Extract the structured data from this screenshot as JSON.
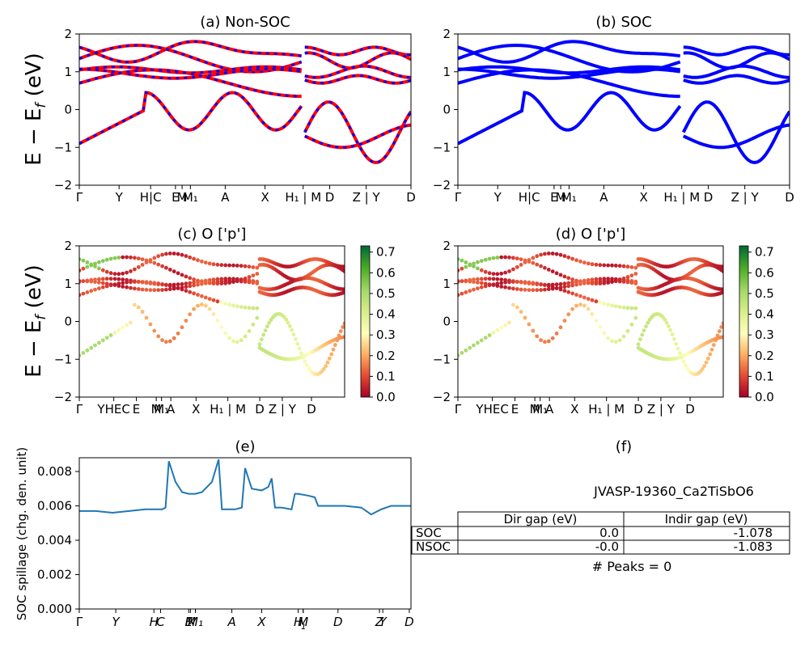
{
  "chart_data": [
    {
      "id": "a",
      "type": "line",
      "title": "(a) Non-SOC",
      "ylabel": "E − E",
      "ylabel_sub": "f",
      "ylabel_unit": " (eV)",
      "ylim": [
        -2,
        2
      ],
      "yticks": [
        "2",
        "1",
        "0",
        "−1",
        "−2"
      ],
      "xtick_labels": [
        "Γ",
        "Y",
        "H|C",
        "E",
        "M",
        "M₁",
        "A",
        "X",
        "H₁ | M",
        "D",
        "Z | Y",
        "D"
      ],
      "colors": {
        "nonsoc": "#ff0000",
        "soc": "#0000ff"
      },
      "note": "red Non-SOC bands overlaid with blue dashed SOC bands"
    },
    {
      "id": "b",
      "type": "line",
      "title": "(b) SOC",
      "ylim": [
        -2,
        2
      ],
      "yticks": [
        "2",
        "1",
        "0",
        "−1",
        "−2"
      ],
      "xtick_labels": [
        "Γ",
        "Y",
        "H|C",
        "E",
        "M",
        "M₁",
        "A",
        "X",
        "H₁ | M",
        "D",
        "Z | Y",
        "D"
      ],
      "colors": {
        "soc": "#0000ff"
      }
    },
    {
      "id": "c",
      "type": "scatter",
      "title": "(c)  O ['p']",
      "ylabel": "E − E",
      "ylabel_sub": "f",
      "ylabel_unit": " (eV)",
      "ylim": [
        -2,
        2
      ],
      "yticks": [
        "2",
        "1",
        "0",
        "−1",
        "−2"
      ],
      "xtick_labels": [
        "Γ",
        "YHEC",
        "E",
        "M",
        "M₁",
        "A",
        "X",
        "H₁ | M",
        "D",
        "Z | Y",
        "D"
      ],
      "colorbar": {
        "cmap": "RdYlGn",
        "range": [
          0.0,
          0.73
        ],
        "ticks": [
          "0.0",
          "0.1",
          "0.2",
          "0.3",
          "0.4",
          "0.5",
          "0.6",
          "0.7"
        ]
      }
    },
    {
      "id": "d",
      "type": "scatter",
      "title": "(d) O ['p']",
      "ylim": [
        -2,
        2
      ],
      "yticks": [
        "2",
        "1",
        "0",
        "−1",
        "−2"
      ],
      "xtick_labels": [
        "Γ",
        "YHEC",
        "E",
        "M",
        "M₁",
        "A",
        "X",
        "H₁ | M",
        "D",
        "Z | Y",
        "D"
      ],
      "colorbar": {
        "cmap": "RdYlGn",
        "range": [
          0.0,
          0.73
        ],
        "ticks": [
          "0.0",
          "0.1",
          "0.2",
          "0.3",
          "0.4",
          "0.5",
          "0.6",
          "0.7"
        ]
      }
    },
    {
      "id": "e",
      "type": "line",
      "title": "(e)",
      "ylabel": "SOC spillage (chg. den. unit)",
      "ylim": [
        0,
        0.0088
      ],
      "yticks": [
        "0.000",
        "0.002",
        "0.004",
        "0.006",
        "0.008"
      ],
      "xtick_labels": [
        "Γ",
        "Y",
        "H",
        "C",
        "E",
        "M",
        "M₁",
        "A",
        "X",
        "H",
        "M",
        "₁",
        "D",
        "Z",
        "Y",
        "D"
      ],
      "x": [
        0,
        0.05,
        0.1,
        0.15,
        0.2,
        0.25,
        0.26,
        0.27,
        0.29,
        0.31,
        0.33,
        0.35,
        0.37,
        0.4,
        0.42,
        0.43,
        0.45,
        0.47,
        0.49,
        0.5,
        0.51,
        0.52,
        0.55,
        0.57,
        0.58,
        0.59,
        0.61,
        0.64,
        0.65,
        0.66,
        0.69,
        0.71,
        0.72,
        0.75,
        0.8,
        0.85,
        0.88,
        0.91,
        0.94,
        0.97,
        1.0
      ],
      "values": [
        0.0057,
        0.0057,
        0.0056,
        0.0057,
        0.0058,
        0.0058,
        0.0059,
        0.0086,
        0.0074,
        0.0068,
        0.0067,
        0.0067,
        0.0068,
        0.0074,
        0.0087,
        0.0058,
        0.0058,
        0.0058,
        0.0059,
        0.0082,
        0.0076,
        0.007,
        0.0069,
        0.0071,
        0.0076,
        0.0059,
        0.0059,
        0.0058,
        0.0067,
        0.0067,
        0.0066,
        0.0065,
        0.006,
        0.006,
        0.006,
        0.0059,
        0.0055,
        0.0058,
        0.006,
        0.006,
        0.006
      ],
      "color": "#1f77b4"
    },
    {
      "id": "f",
      "type": "table",
      "title": "(f)",
      "caption": "JVASP-19360_Ca2TiSbO6",
      "columns": [
        "Dir gap (eV)",
        "Indir gap (eV)"
      ],
      "rows": [
        {
          "label": "SOC",
          "dir": "0.0",
          "indir": "-1.078"
        },
        {
          "label": "NSOC",
          "dir": "-0.0",
          "indir": "-1.083"
        }
      ],
      "footer": "# Peaks = 0"
    }
  ]
}
